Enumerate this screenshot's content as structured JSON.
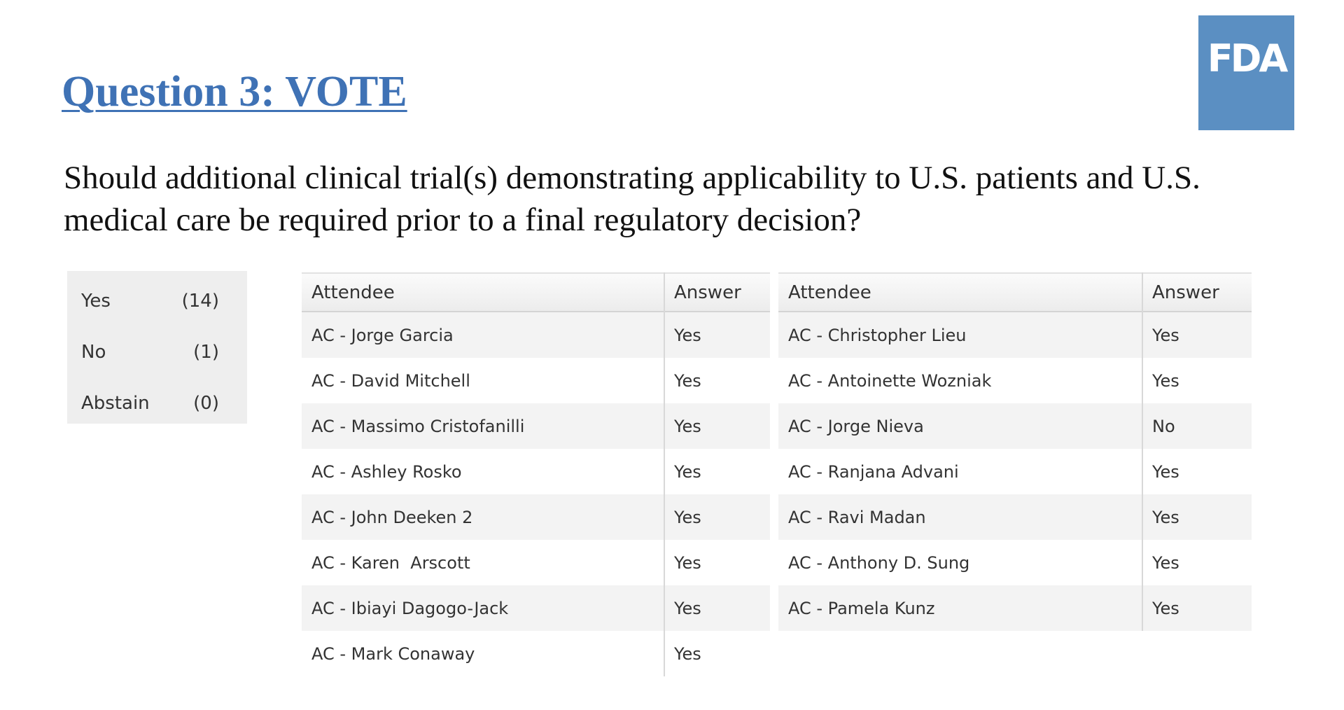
{
  "header": {
    "title": "Question 3: VOTE",
    "logo": "FDA"
  },
  "question": "Should additional clinical trial(s) demonstrating applicability to U.S. patients and U.S. medical care be required prior to a final regulatory decision?",
  "summary": [
    {
      "label": "Yes",
      "count": "(14)"
    },
    {
      "label": "No",
      "count": "(1)"
    },
    {
      "label": "Abstain",
      "count": "(0)"
    }
  ],
  "tables": [
    {
      "headers": [
        "Attendee",
        "Answer"
      ],
      "rows": [
        [
          "AC - Jorge Garcia",
          "Yes"
        ],
        [
          "AC - David Mitchell",
          "Yes"
        ],
        [
          "AC - Massimo Cristofanilli",
          "Yes"
        ],
        [
          "AC - Ashley Rosko",
          "Yes"
        ],
        [
          "AC - John Deeken 2",
          "Yes"
        ],
        [
          "AC - Karen  Arscott",
          "Yes"
        ],
        [
          "AC - Ibiayi Dagogo-Jack",
          "Yes"
        ],
        [
          "AC - Mark Conaway",
          "Yes"
        ]
      ]
    },
    {
      "headers": [
        "Attendee",
        "Answer"
      ],
      "rows": [
        [
          "AC - Christopher Lieu",
          "Yes"
        ],
        [
          "AC - Antoinette Wozniak",
          "Yes"
        ],
        [
          "AC - Jorge Nieva",
          "No"
        ],
        [
          "AC - Ranjana Advani",
          "Yes"
        ],
        [
          "AC - Ravi Madan",
          "Yes"
        ],
        [
          "AC - Anthony D. Sung",
          "Yes"
        ],
        [
          "AC - Pamela Kunz",
          "Yes"
        ]
      ]
    }
  ]
}
